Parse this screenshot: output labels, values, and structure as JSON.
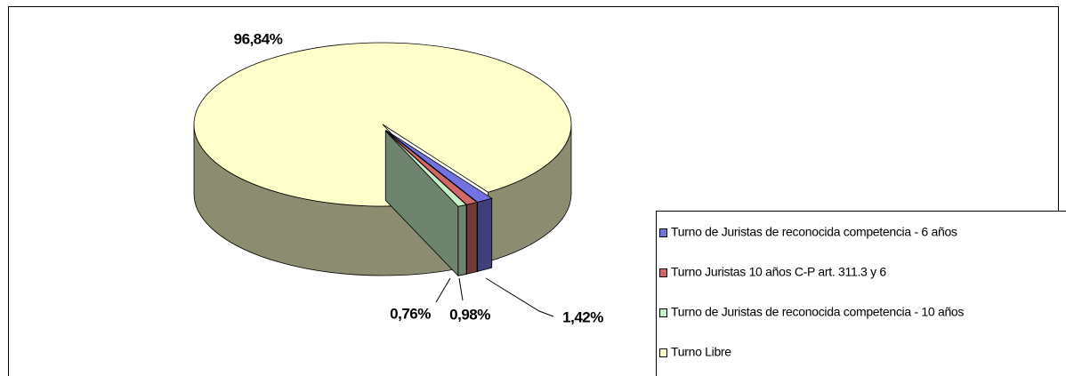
{
  "chart_data": {
    "type": "pie",
    "categories": [
      "Turno de Juristas de reconocida competencia - 6 años",
      "Turno Juristas 10 años C-P art. 311.3 y 6",
      "Turno de Juristas de reconocida competencia - 10 años",
      "Turno Libre"
    ],
    "values": [
      1.42,
      0.98,
      0.76,
      96.84
    ],
    "value_labels": [
      "1,42%",
      "0,98%",
      "0,76%",
      "96,84%"
    ],
    "colors": [
      "#7272e0",
      "#d06868",
      "#c8f0c8",
      "#ffffcc"
    ]
  }
}
